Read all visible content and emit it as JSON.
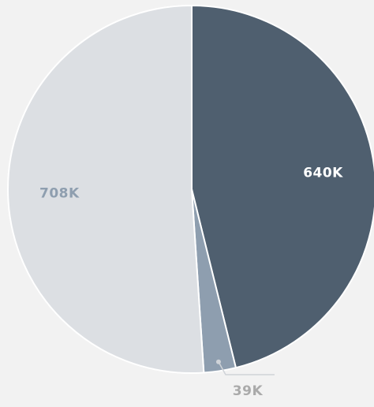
{
  "chart_data": {
    "type": "pie",
    "values": [
      640000,
      39000,
      708000
    ],
    "value_labels": [
      "640K",
      "39K",
      "708K"
    ],
    "colors": [
      "#4f5f6f",
      "#8e9eaf",
      "#dcdfe3"
    ],
    "label_colors": [
      "#ffffff",
      "#aaaaaa",
      "#8e9eaf"
    ]
  }
}
